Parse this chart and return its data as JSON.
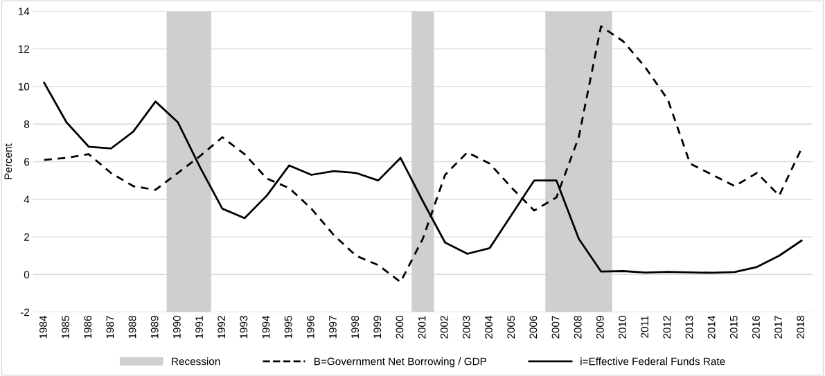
{
  "chart_data": {
    "type": "line",
    "ylabel": "Percent",
    "categories": [
      "1984",
      "1985",
      "1986",
      "1987",
      "1988",
      "1989",
      "1990",
      "1991",
      "1992",
      "1993",
      "1994",
      "1995",
      "1996",
      "1997",
      "1998",
      "1999",
      "2000",
      "2001",
      "2002",
      "2003",
      "2004",
      "2005",
      "2006",
      "2007",
      "2008",
      "2009",
      "2010",
      "2011",
      "2012",
      "2013",
      "2014",
      "2015",
      "2016",
      "2017",
      "2018"
    ],
    "series": [
      {
        "name": "B=Government Net Borrowing / GDP",
        "color": "#000000",
        "line_style": "dashed",
        "values": [
          6.1,
          6.2,
          6.4,
          5.4,
          4.7,
          4.5,
          5.4,
          6.3,
          7.3,
          6.4,
          5.1,
          4.6,
          3.5,
          2.1,
          1.0,
          0.5,
          -0.4,
          1.9,
          5.3,
          6.5,
          5.9,
          4.6,
          3.4,
          4.1,
          7.3,
          13.2,
          12.4,
          11.0,
          9.3,
          5.9,
          5.3,
          4.7,
          5.4,
          4.2,
          6.7
        ]
      },
      {
        "name": "i=Effective Federal Funds Rate",
        "color": "#000000",
        "line_style": "solid",
        "values": [
          10.2,
          8.1,
          6.8,
          6.7,
          7.6,
          9.2,
          8.1,
          5.7,
          3.5,
          3.0,
          4.2,
          5.8,
          5.3,
          5.5,
          5.4,
          5.0,
          6.2,
          3.9,
          1.7,
          1.1,
          1.4,
          3.2,
          5.0,
          5.0,
          1.9,
          0.16,
          0.18,
          0.1,
          0.14,
          0.11,
          0.09,
          0.13,
          0.4,
          1.0,
          1.8
        ]
      }
    ],
    "bands": [
      {
        "axis": "x",
        "from": "1990",
        "to": "1991",
        "label": "Recession",
        "color": "#d0cece"
      },
      {
        "axis": "x",
        "from": "2001",
        "to": "2001",
        "color": "#d0cece"
      },
      {
        "axis": "x",
        "from": "2007",
        "to": "2009",
        "color": "#d0cece"
      }
    ],
    "ylim": [
      -2,
      14
    ],
    "yticks": [
      -2,
      0,
      2,
      4,
      6,
      8,
      10,
      12,
      14
    ],
    "grid": "y",
    "legend": "bottom",
    "marker": "none"
  }
}
